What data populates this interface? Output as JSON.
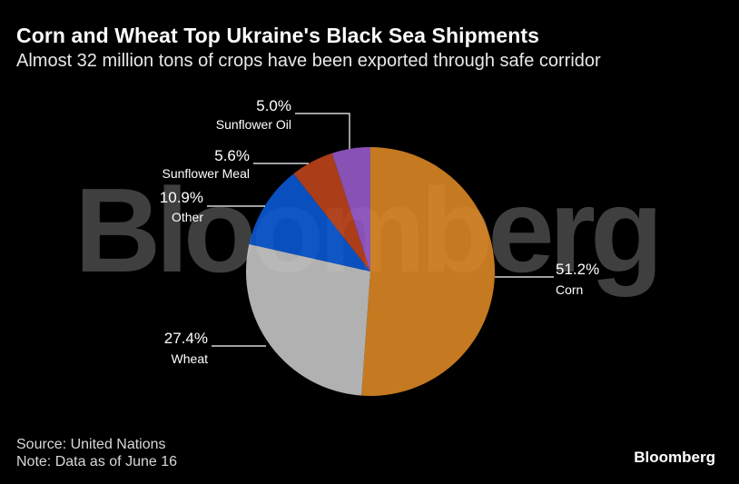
{
  "chart_data": {
    "type": "pie",
    "title": "Corn and Wheat Top Ukraine's Black Sea Shipments",
    "subtitle": "Almost 32 million tons of crops have been exported through safe corridor",
    "slices": [
      {
        "label": "Corn",
        "value": 51.2,
        "display": "51.2%",
        "color": "#E08A26"
      },
      {
        "label": "Wheat",
        "value": 27.4,
        "display": "27.4%",
        "color": "#C9C9C9"
      },
      {
        "label": "Other",
        "value": 10.9,
        "display": "10.9%",
        "color": "#0A5BD8"
      },
      {
        "label": "Sunflower Meal",
        "value": 5.6,
        "display": "5.6%",
        "color": "#C4451C"
      },
      {
        "label": "Sunflower Oil",
        "value": 5.0,
        "display": "5.0%",
        "color": "#9B5CCF"
      }
    ],
    "legend": "none"
  },
  "footer": {
    "source": "Source: United Nations",
    "note": "Note: Data as of June 16"
  },
  "branding": {
    "logo": "Bloomberg",
    "watermark": "Bloomberg"
  }
}
